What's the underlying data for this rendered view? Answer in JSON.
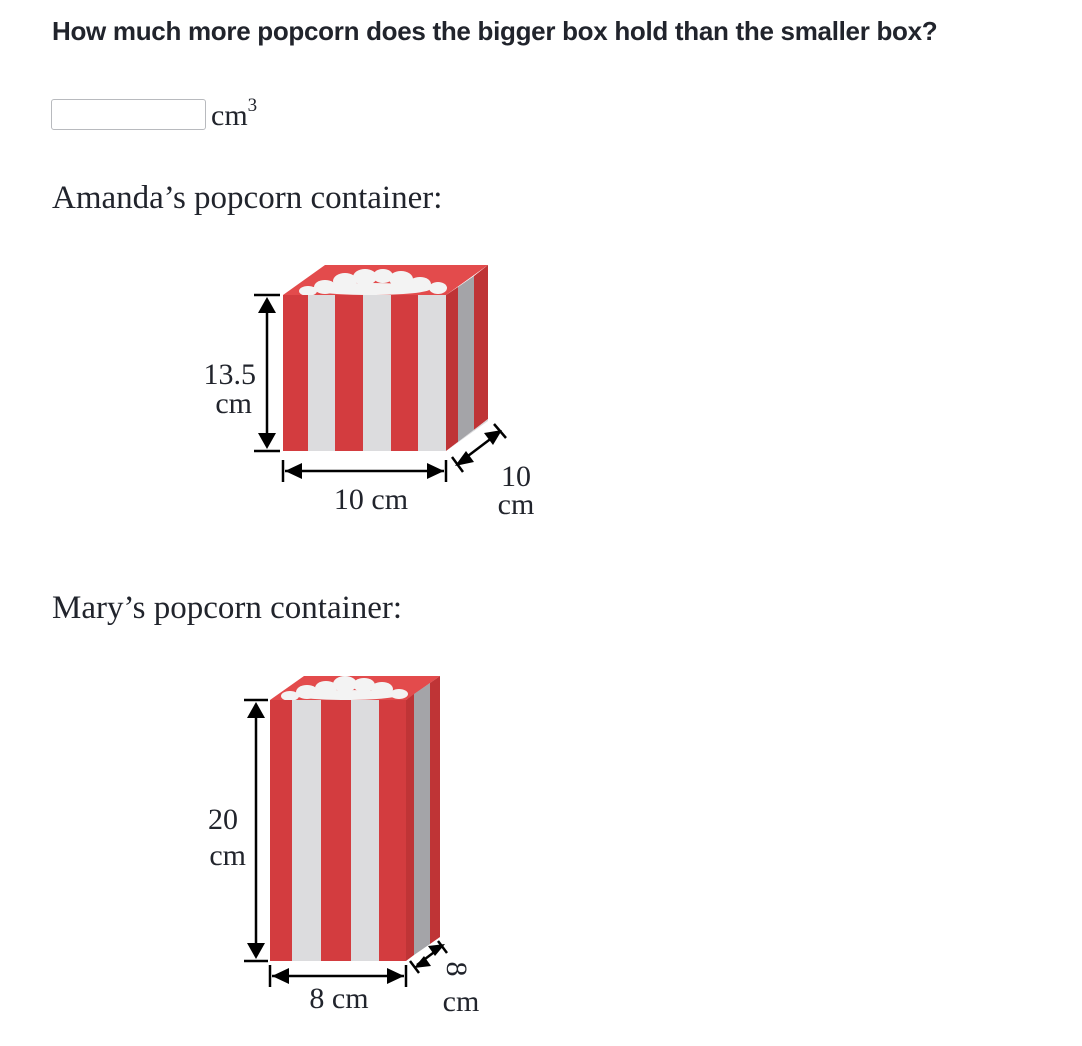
{
  "question": {
    "text": "How much more popcorn does the bigger box hold than the smaller box?"
  },
  "answer": {
    "value": "",
    "placeholder": "",
    "unit": "cm",
    "unit_exponent": "3"
  },
  "containers": [
    {
      "label": "Amanda’s popcorn container:",
      "height_value": "13.5",
      "height_unit": "cm",
      "width_label": "10 cm",
      "depth_value": "10",
      "depth_unit": "cm"
    },
    {
      "label": "Mary’s popcorn container:",
      "height_value": "20",
      "height_unit": "cm",
      "width_label": "8 cm",
      "depth_value": "8",
      "depth_unit": "cm"
    }
  ],
  "colors": {
    "text": "#21242c",
    "stripe_red": "#d33c3f",
    "stripe_white": "#dcdcde",
    "side_red": "#bf3436",
    "side_gray": "#a4a4a8",
    "top_red": "#e34b4c",
    "popcorn": "#f3f3f3",
    "input_border": "#b8babe"
  }
}
